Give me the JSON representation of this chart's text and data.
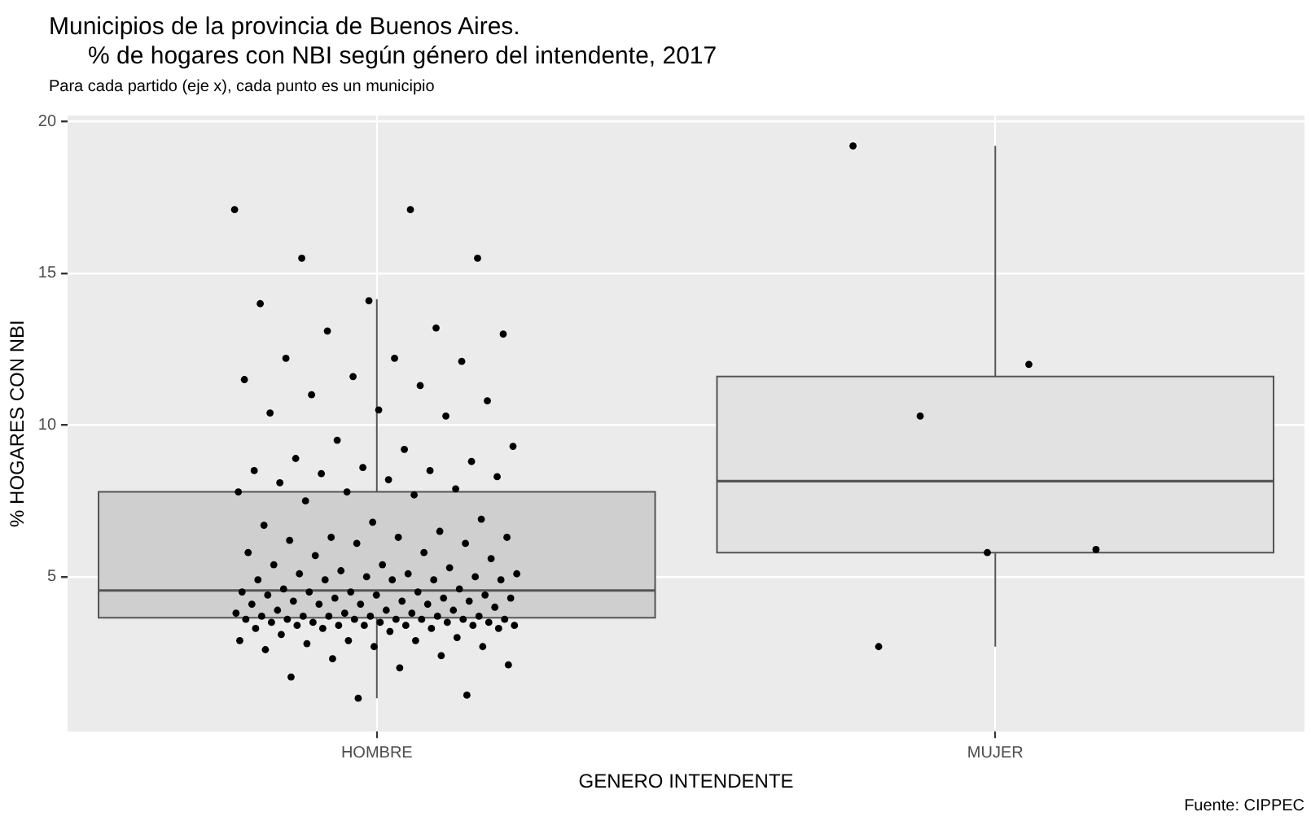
{
  "chart_data": {
    "type": "box",
    "title": "Municipios de la provincia de Buenos Aires.\n% de hogares con NBI según género del intendente, 2017",
    "subtitle": "Para cada partido (eje x), cada punto es un municipio",
    "xlabel": "GENERO INTENDENTE",
    "ylabel": "% HOGARES CON NBI",
    "annotations": [
      "Fuente: CIPPEC"
    ],
    "categories": [
      "HOMBRE",
      "MUJER"
    ],
    "colors": [
      "#cfcfcf",
      "#e2e2e2"
    ],
    "boxes": [
      {
        "low": 1.0,
        "q1": 3.65,
        "median": 4.55,
        "q3": 7.8,
        "high": 14.15
      },
      {
        "low": 2.7,
        "q1": 5.8,
        "median": 8.15,
        "q3": 11.6,
        "high": 19.2
      }
    ],
    "series": [
      {
        "type": "scatter",
        "color": "#000000",
        "x": [
          "HOMBRE",
          "HOMBRE",
          "HOMBRE",
          "HOMBRE",
          "HOMBRE",
          "HOMBRE",
          "HOMBRE",
          "HOMBRE",
          "HOMBRE",
          "HOMBRE",
          "HOMBRE",
          "HOMBRE",
          "HOMBRE",
          "HOMBRE",
          "HOMBRE",
          "HOMBRE",
          "HOMBRE",
          "HOMBRE",
          "HOMBRE",
          "HOMBRE",
          "HOMBRE",
          "HOMBRE",
          "HOMBRE",
          "HOMBRE",
          "HOMBRE",
          "HOMBRE",
          "HOMBRE",
          "HOMBRE",
          "HOMBRE",
          "HOMBRE",
          "HOMBRE",
          "HOMBRE",
          "HOMBRE",
          "HOMBRE",
          "HOMBRE",
          "HOMBRE",
          "HOMBRE",
          "HOMBRE",
          "HOMBRE",
          "HOMBRE",
          "HOMBRE",
          "HOMBRE",
          "HOMBRE",
          "HOMBRE",
          "HOMBRE",
          "HOMBRE",
          "HOMBRE",
          "HOMBRE",
          "HOMBRE",
          "HOMBRE",
          "HOMBRE",
          "HOMBRE",
          "HOMBRE",
          "HOMBRE",
          "HOMBRE",
          "HOMBRE",
          "HOMBRE",
          "HOMBRE",
          "HOMBRE",
          "HOMBRE",
          "HOMBRE",
          "HOMBRE",
          "HOMBRE",
          "HOMBRE",
          "HOMBRE",
          "HOMBRE",
          "HOMBRE",
          "HOMBRE",
          "HOMBRE",
          "HOMBRE",
          "HOMBRE",
          "HOMBRE",
          "HOMBRE",
          "HOMBRE",
          "HOMBRE",
          "HOMBRE",
          "HOMBRE",
          "HOMBRE",
          "HOMBRE",
          "HOMBRE",
          "HOMBRE",
          "HOMBRE",
          "HOMBRE",
          "HOMBRE",
          "HOMBRE",
          "HOMBRE",
          "HOMBRE",
          "HOMBRE",
          "HOMBRE",
          "HOMBRE",
          "HOMBRE",
          "HOMBRE",
          "HOMBRE",
          "HOMBRE",
          "HOMBRE",
          "HOMBRE",
          "HOMBRE",
          "HOMBRE",
          "HOMBRE",
          "HOMBRE",
          "HOMBRE",
          "HOMBRE",
          "HOMBRE",
          "HOMBRE",
          "HOMBRE",
          "HOMBRE",
          "HOMBRE",
          "HOMBRE",
          "HOMBRE",
          "HOMBRE",
          "HOMBRE",
          "HOMBRE",
          "HOMBRE",
          "HOMBRE",
          "HOMBRE",
          "HOMBRE",
          "HOMBRE",
          "HOMBRE",
          "HOMBRE",
          "HOMBRE",
          "HOMBRE",
          "HOMBRE",
          "HOMBRE",
          "HOMBRE",
          "HOMBRE",
          "HOMBRE",
          "HOMBRE",
          "HOMBRE",
          "HOMBRE",
          "HOMBRE",
          "HOMBRE",
          "HOMBRE",
          "HOMBRE",
          "HOMBRE",
          "HOMBRE",
          "HOMBRE"
        ],
        "values": [
          17.1,
          17.1,
          15.5,
          15.5,
          14.1,
          14.0,
          13.2,
          13.1,
          13.0,
          12.2,
          12.2,
          12.1,
          11.6,
          11.5,
          11.3,
          11.0,
          10.8,
          10.5,
          10.4,
          10.3,
          9.5,
          9.3,
          9.2,
          8.9,
          8.8,
          8.6,
          8.5,
          8.5,
          8.4,
          8.3,
          8.2,
          8.1,
          7.9,
          7.8,
          7.8,
          7.7,
          7.5,
          6.9,
          6.8,
          6.7,
          6.5,
          6.3,
          6.3,
          6.3,
          6.2,
          6.1,
          6.1,
          5.8,
          5.8,
          5.7,
          5.6,
          5.4,
          5.4,
          5.3,
          5.2,
          5.1,
          5.1,
          5.1,
          5.0,
          5.0,
          4.9,
          4.9,
          4.9,
          4.9,
          4.9,
          4.6,
          4.6,
          4.5,
          4.5,
          4.5,
          4.5,
          4.4,
          4.4,
          4.4,
          4.3,
          4.3,
          4.3,
          4.2,
          4.2,
          4.2,
          4.1,
          4.1,
          4.1,
          4.1,
          4.0,
          3.9,
          3.9,
          3.9,
          3.8,
          3.8,
          3.8,
          3.7,
          3.7,
          3.7,
          3.7,
          3.7,
          3.7,
          3.6,
          3.6,
          3.6,
          3.6,
          3.6,
          3.6,
          3.6,
          3.5,
          3.5,
          3.5,
          3.5,
          3.5,
          3.4,
          3.4,
          3.4,
          3.4,
          3.4,
          3.4,
          3.3,
          3.3,
          3.3,
          3.3,
          3.2,
          3.1,
          3.0,
          2.9,
          2.9,
          2.9,
          2.8,
          2.7,
          2.7,
          2.6,
          2.4,
          2.3,
          2.1,
          2.0,
          1.7,
          1.1,
          1.0
        ]
      },
      {
        "type": "scatter",
        "color": "#000000",
        "x": [
          "MUJER",
          "MUJER",
          "MUJER",
          "MUJER",
          "MUJER",
          "MUJER"
        ],
        "values": [
          19.2,
          12.0,
          10.3,
          5.9,
          5.8,
          2.7
        ]
      }
    ],
    "ylim": [
      -0.1,
      20.2
    ],
    "yticks": [
      5,
      10,
      15,
      20
    ],
    "grid": true,
    "legend": false,
    "marker": "circle"
  }
}
